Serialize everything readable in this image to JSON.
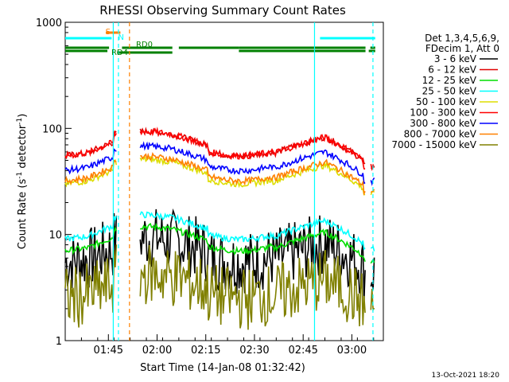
{
  "chart_data": {
    "type": "line",
    "title": "RHESSI Observing Summary Count Rates",
    "xlabel": "Start Time (14-Jan-08 01:32:42)",
    "ylabel_main": "Count Rate (s",
    "ylabel_sup1": "-1",
    "ylabel_mid": " detector",
    "ylabel_sup2": "-1",
    "ylabel_end": ")",
    "y_scale": "log",
    "ylim": [
      1,
      1000
    ],
    "xlim_minutes": [
      0,
      98
    ],
    "x_ticks": [
      {
        "minute": 13.3,
        "label": "01:45"
      },
      {
        "minute": 28.3,
        "label": "02:00"
      },
      {
        "minute": 43.3,
        "label": "02:15"
      },
      {
        "minute": 58.3,
        "label": "02:30"
      },
      {
        "minute": 73.3,
        "label": "02:45"
      },
      {
        "minute": 88.3,
        "label": "03:00"
      }
    ],
    "y_ticks": [
      {
        "value": 1,
        "label": "1"
      },
      {
        "value": 10,
        "label": "10"
      },
      {
        "value": 100,
        "label": "100"
      },
      {
        "value": 1000,
        "label": "1000"
      }
    ],
    "legend": {
      "header1": "Det 1,3,4,5,6,9,",
      "header2": "FDecim 1, Att 0",
      "position": "right"
    },
    "series": [
      {
        "name": "3 - 6 keV",
        "color": "#000000",
        "level": 5.5,
        "noisy": true
      },
      {
        "name": "6 - 12 keV",
        "color": "#e00000",
        "level": 55
      },
      {
        "name": "12 - 25 keV",
        "color": "#00dd00",
        "level": 7
      },
      {
        "name": "25 - 50 keV",
        "color": "#00ffff",
        "level": 9
      },
      {
        "name": "50 - 100 keV",
        "color": "#dddd00",
        "level": 30
      },
      {
        "name": "100 - 300 keV",
        "color": "#ff0000",
        "level": 55
      },
      {
        "name": "300 - 800 keV",
        "color": "#0000ff",
        "level": 40
      },
      {
        "name": "800 - 7000 keV",
        "color": "#ff8000",
        "level": 32
      },
      {
        "name": "7000 - 15000 keV",
        "color": "#808000",
        "level": 2.5,
        "noisy": true
      }
    ],
    "annotations": [
      {
        "text": "S",
        "color": "#ff8000"
      },
      {
        "text": "N",
        "color": "#00ffff"
      },
      {
        "text": "RD0",
        "color": "#008000"
      },
      {
        "text": "RD4",
        "color": "#008000"
      }
    ],
    "footer_date": "13-Oct-2021 18:20"
  }
}
